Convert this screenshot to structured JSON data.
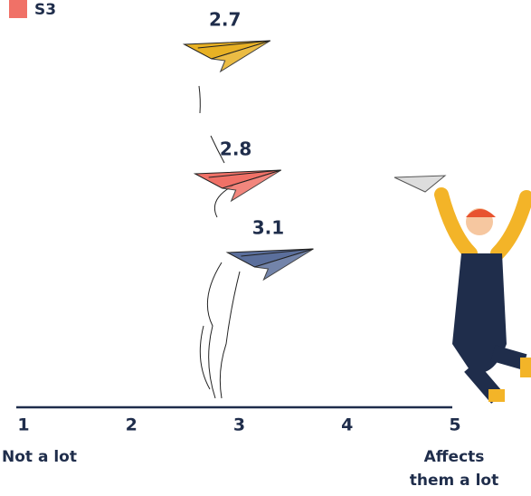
{
  "chart_data": {
    "type": "scatter",
    "legend": [
      {
        "label": "S3",
        "color": "#f07167"
      }
    ],
    "points": [
      {
        "value": 2.7,
        "color": "#e8b124"
      },
      {
        "value": 2.8,
        "color": "#f07167"
      },
      {
        "value": 3.1,
        "color": "#5b6f9c"
      }
    ],
    "xlim": [
      1,
      5
    ],
    "xticks": [
      1,
      2,
      3,
      4,
      5
    ],
    "x_min_label": "Not a lot",
    "x_max_label": "Affects them a lot"
  }
}
